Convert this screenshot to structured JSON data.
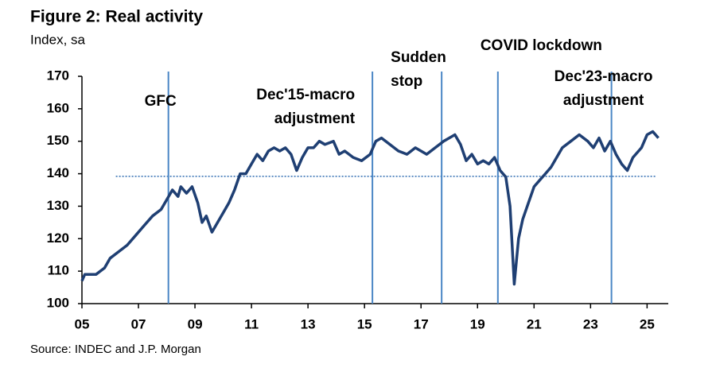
{
  "chart_data": {
    "type": "line",
    "title": "Figure 2: Real activity",
    "subtitle": "Index, sa",
    "source": "Source: INDEC and J.P. Morgan",
    "color": "#1f3f73",
    "x": [
      2005.0,
      2005.1,
      2005.5,
      2005.8,
      2006.0,
      2006.3,
      2006.6,
      2006.9,
      2007.2,
      2007.5,
      2007.8,
      2008.0,
      2008.2,
      2008.4,
      2008.5,
      2008.7,
      2008.9,
      2009.1,
      2009.25,
      2009.4,
      2009.6,
      2009.8,
      2010.0,
      2010.2,
      2010.4,
      2010.6,
      2010.8,
      2011.0,
      2011.2,
      2011.4,
      2011.6,
      2011.8,
      2012.0,
      2012.2,
      2012.4,
      2012.6,
      2012.8,
      2013.0,
      2013.2,
      2013.4,
      2013.6,
      2013.9,
      2014.1,
      2014.3,
      2014.6,
      2014.9,
      2015.2,
      2015.4,
      2015.6,
      2015.9,
      2016.2,
      2016.5,
      2016.8,
      2017.0,
      2017.2,
      2017.5,
      2017.8,
      2018.0,
      2018.2,
      2018.4,
      2018.6,
      2018.8,
      2019.0,
      2019.2,
      2019.4,
      2019.6,
      2019.8,
      2020.0,
      2020.15,
      2020.3,
      2020.45,
      2020.6,
      2020.8,
      2021.0,
      2021.2,
      2021.4,
      2021.6,
      2021.8,
      2022.0,
      2022.3,
      2022.6,
      2022.9,
      2023.1,
      2023.3,
      2023.5,
      2023.7,
      2023.9,
      2024.1,
      2024.3,
      2024.5,
      2024.8,
      2025.0,
      2025.2,
      2025.4
    ],
    "values": [
      107,
      109,
      109,
      111,
      114,
      116,
      118,
      121,
      124,
      127,
      129,
      132,
      135,
      133,
      136,
      134,
      136,
      131,
      125,
      127,
      122,
      125,
      128,
      131,
      135,
      140,
      140,
      143,
      146,
      144,
      147,
      148,
      147,
      148,
      146,
      141,
      145,
      148,
      148,
      150,
      149,
      150,
      146,
      147,
      145,
      144,
      146,
      150,
      151,
      149,
      147,
      146,
      148,
      147,
      146,
      148,
      150,
      151,
      152,
      149,
      144,
      146,
      143,
      144,
      143,
      145,
      141,
      139,
      130,
      106,
      120,
      126,
      131,
      136,
      138,
      140,
      142,
      145,
      148,
      150,
      152,
      150,
      148,
      151,
      147,
      150,
      146,
      143,
      141,
      145,
      148,
      152,
      153,
      151
    ],
    "xlim": [
      2005,
      2025.75
    ],
    "xticks": [
      {
        "value": 2005,
        "label": "05"
      },
      {
        "value": 2007,
        "label": "07"
      },
      {
        "value": 2009,
        "label": "09"
      },
      {
        "value": 2011,
        "label": "11"
      },
      {
        "value": 2013,
        "label": "13"
      },
      {
        "value": 2015,
        "label": "15"
      },
      {
        "value": 2017,
        "label": "17"
      },
      {
        "value": 2019,
        "label": "19"
      },
      {
        "value": 2021,
        "label": "21"
      },
      {
        "value": 2023,
        "label": "23"
      },
      {
        "value": 2025,
        "label": "25"
      }
    ],
    "ylim": [
      100,
      170
    ],
    "yticks": [
      100,
      110,
      120,
      130,
      140,
      150,
      160,
      170
    ],
    "grid": false,
    "reference_line": {
      "y": 139.2,
      "x": [
        2006.2,
        2025.3
      ],
      "color": "#2e6bb0"
    },
    "events": [
      {
        "x": 2008.06,
        "lines": [
          "GFC"
        ]
      },
      {
        "x": 2015.28,
        "lines": [
          "Dec'15-macro",
          "adjustment"
        ]
      },
      {
        "x": 2017.73,
        "lines": [
          "Sudden",
          "stop"
        ]
      },
      {
        "x": 2019.72,
        "lines": [
          "COVID lockdown"
        ]
      },
      {
        "x": 2023.74,
        "lines": [
          "Dec'23-macro",
          "adjustment"
        ]
      }
    ],
    "event_color": "#4a86c5"
  }
}
